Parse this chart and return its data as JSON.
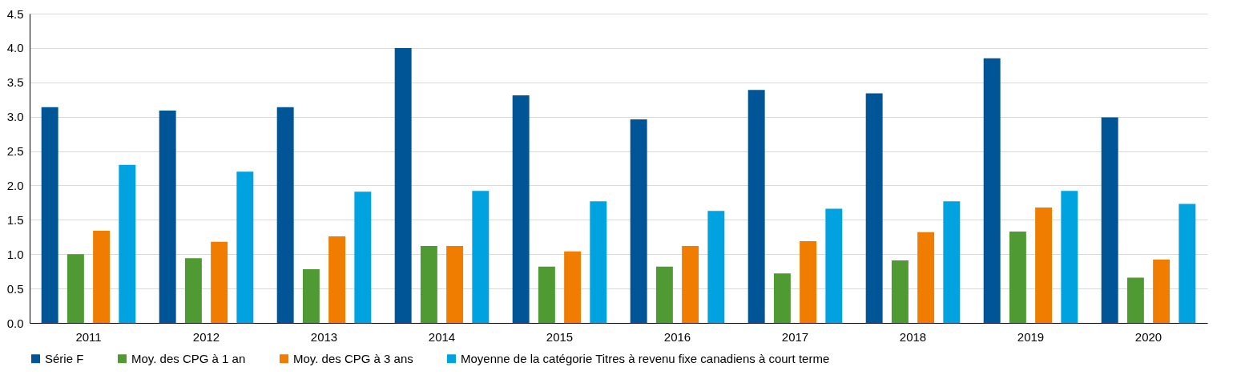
{
  "chart_data": {
    "type": "bar",
    "categories": [
      "2011",
      "2012",
      "2013",
      "2014",
      "2015",
      "2016",
      "2017",
      "2018",
      "2019",
      "2020"
    ],
    "series": [
      {
        "name": "Série F",
        "color": "#005597",
        "values": [
          3.14,
          3.09,
          3.14,
          4.0,
          3.31,
          2.96,
          3.39,
          3.34,
          3.85,
          2.99
        ]
      },
      {
        "name": "Moy. des CPG à 1 an",
        "color": "#4f9a32",
        "values": [
          1.0,
          0.94,
          0.78,
          1.12,
          0.82,
          0.82,
          0.72,
          0.91,
          1.33,
          0.66
        ]
      },
      {
        "name": "Moy. des CPG à 3 ans",
        "color": "#f07c00",
        "values": [
          1.34,
          1.18,
          1.26,
          1.12,
          1.04,
          1.12,
          1.19,
          1.32,
          1.68,
          0.92
        ]
      },
      {
        "name": "Moyenne de la catégorie Titres à revenu fixe canadiens à court terme",
        "color": "#00a3e0",
        "values": [
          2.3,
          2.2,
          1.91,
          1.92,
          1.77,
          1.63,
          1.66,
          1.77,
          1.92,
          1.73
        ]
      }
    ],
    "ylim": [
      0,
      4.5
    ],
    "yticks": [
      {
        "value": 0,
        "label": "0.0"
      },
      0.5,
      {
        "value": 1,
        "label": "1.0"
      },
      1.5,
      {
        "value": 2,
        "label": "2.0"
      },
      2.5,
      {
        "value": 3,
        "label": "3.0"
      },
      3.5,
      {
        "value": 4,
        "label": "4.0"
      },
      4.5
    ],
    "grid": "y",
    "legend": "bottom"
  }
}
